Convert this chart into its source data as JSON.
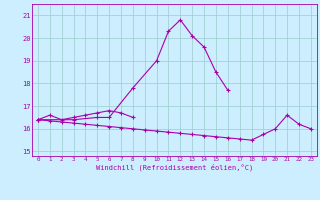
{
  "xlabel": "Windchill (Refroidissement éolien,°C)",
  "bg_color": "#cceeff",
  "line_color": "#aa00aa",
  "grid_color": "#99cccc",
  "series": {
    "s1_x": [
      0,
      1,
      2,
      3,
      4,
      5,
      6,
      7,
      8
    ],
    "s1_y": [
      16.4,
      16.6,
      16.4,
      16.5,
      16.6,
      16.7,
      16.8,
      16.7,
      16.5
    ],
    "s2_x": [
      0,
      3,
      5,
      6,
      8,
      10,
      11,
      12,
      13,
      14,
      15,
      16
    ],
    "s2_y": [
      16.4,
      16.4,
      16.5,
      16.5,
      17.8,
      19.0,
      20.3,
      20.8,
      20.1,
      19.6,
      18.5,
      17.7
    ],
    "s3_x": [
      0,
      1,
      2,
      3,
      4,
      5,
      6,
      7,
      8,
      9,
      10,
      11,
      12,
      13,
      14,
      15,
      16,
      17,
      18,
      19,
      20,
      21,
      22,
      23
    ],
    "s3_y": [
      16.4,
      16.35,
      16.3,
      16.25,
      16.2,
      16.15,
      16.1,
      16.05,
      16.0,
      15.95,
      15.9,
      15.85,
      15.8,
      15.75,
      15.7,
      15.65,
      15.6,
      15.55,
      15.5,
      15.75,
      16.0,
      16.6,
      16.2,
      16.0
    ]
  },
  "ylim": [
    14.8,
    21.5
  ],
  "xlim": [
    -0.5,
    23.5
  ],
  "yticks": [
    15,
    16,
    17,
    18,
    19,
    20,
    21
  ],
  "xticks": [
    0,
    1,
    2,
    3,
    4,
    5,
    6,
    7,
    8,
    9,
    10,
    11,
    12,
    13,
    14,
    15,
    16,
    17,
    18,
    19,
    20,
    21,
    22,
    23
  ]
}
